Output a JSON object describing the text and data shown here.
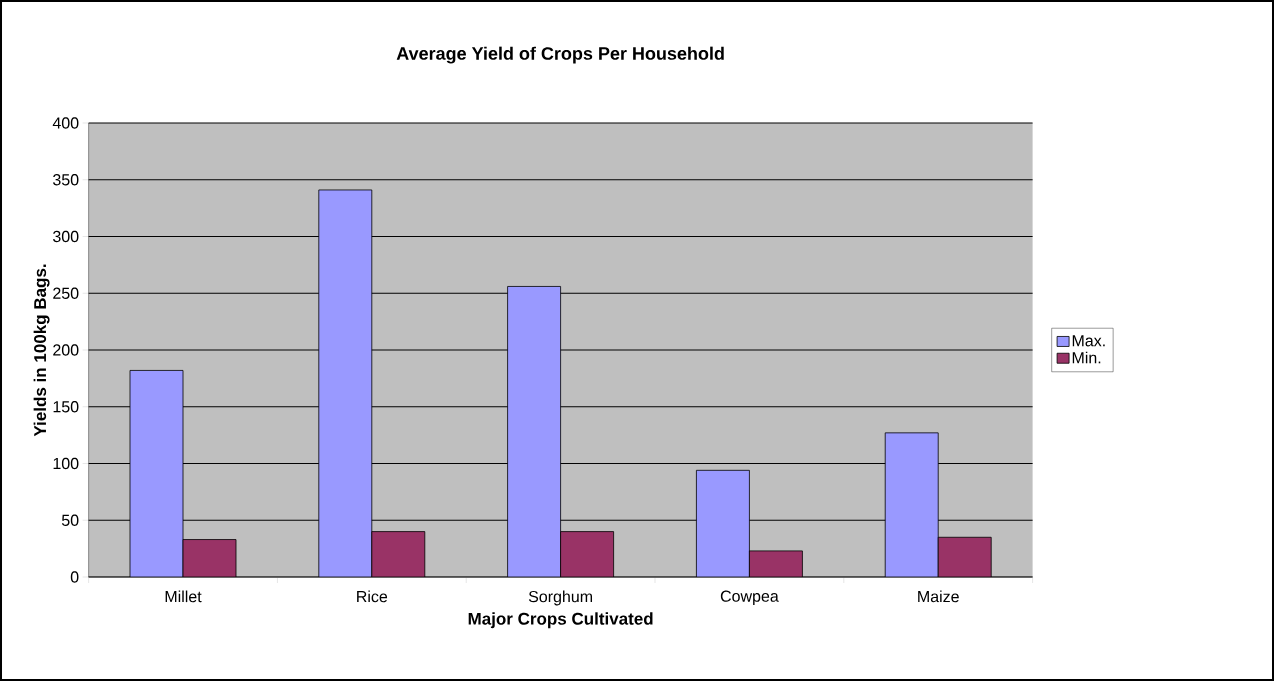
{
  "chart_data": {
    "type": "bar",
    "title": "Average Yield of Crops Per Household",
    "xlabel": "Major Crops Cultivated",
    "ylabel": "Yields in 100kg Bags.",
    "categories": [
      "Millet",
      "Rice",
      "Sorghum",
      "Cowpea",
      "Maize"
    ],
    "series": [
      {
        "name": "Max.",
        "color": "#9999ff",
        "values": [
          182,
          341,
          256,
          94,
          127
        ]
      },
      {
        "name": "Min.",
        "color": "#993366",
        "values": [
          33,
          40,
          40,
          23,
          35
        ]
      }
    ],
    "ylim": [
      0,
      400
    ],
    "yticks": [
      0,
      50,
      100,
      150,
      200,
      250,
      300,
      350,
      400
    ],
    "grid": "y",
    "legend": "right"
  }
}
